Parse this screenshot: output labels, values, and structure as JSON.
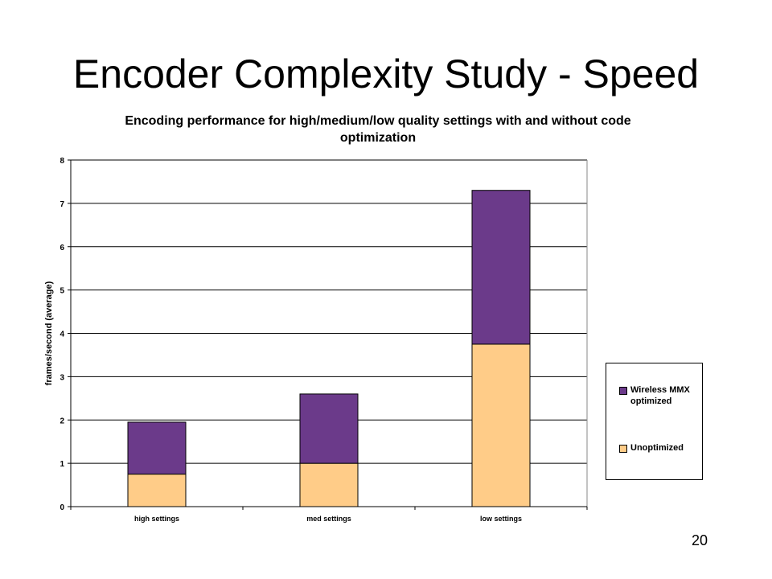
{
  "slide": {
    "title": "Encoder Complexity Study - Speed",
    "page_number": "20"
  },
  "colors": {
    "wireless_mmx": "#6B3A8A",
    "unoptimized": "#FFCC88",
    "gridline": "#000000"
  },
  "chart_data": {
    "type": "bar",
    "stacked": true,
    "title": "Encoding performance for high/medium/low quality settings with and without code optimization",
    "xlabel": "",
    "ylabel": "frames/second (average)",
    "categories": [
      "high settings",
      "med settings",
      "low settings"
    ],
    "ylim": [
      0,
      8
    ],
    "yticks": [
      0,
      1,
      2,
      3,
      4,
      5,
      6,
      7,
      8
    ],
    "grid": true,
    "legend_position": "right",
    "series": [
      {
        "name": "Unoptimized",
        "values": [
          0.75,
          1.0,
          3.75
        ],
        "color": "#FFCC88"
      },
      {
        "name": "Wireless MMX optimized",
        "values": [
          1.2,
          1.6,
          3.55
        ],
        "color": "#6B3A8A"
      }
    ]
  }
}
